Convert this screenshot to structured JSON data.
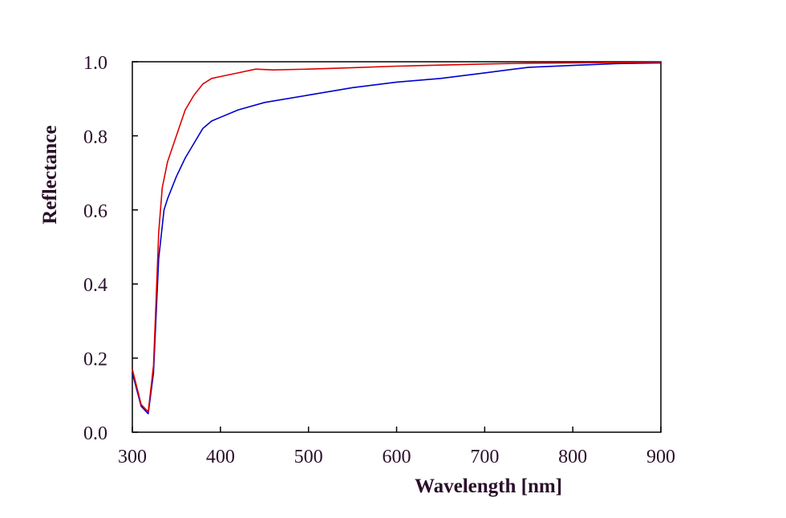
{
  "chart_data": {
    "type": "line",
    "xlabel": "Wavelength [nm]",
    "ylabel": "Reflectance",
    "xlim": [
      300,
      900
    ],
    "ylim": [
      0.0,
      1.0
    ],
    "x_ticks": [
      "300",
      "400",
      "500",
      "600",
      "700",
      "800",
      "900"
    ],
    "y_ticks": [
      "0.0",
      "0.2",
      "0.4",
      "0.6",
      "0.8",
      "1.0"
    ],
    "grid": false,
    "legend": "none",
    "series": [
      {
        "color": "#0000cc",
        "x": [
          300,
          310,
          318,
          324,
          330,
          336,
          340,
          350,
          360,
          370,
          380,
          390,
          400,
          420,
          450,
          500,
          550,
          600,
          650,
          700,
          750,
          800,
          850,
          900
        ],
        "y": [
          0.16,
          0.07,
          0.05,
          0.16,
          0.47,
          0.6,
          0.63,
          0.69,
          0.74,
          0.78,
          0.82,
          0.84,
          0.85,
          0.87,
          0.89,
          0.91,
          0.93,
          0.945,
          0.955,
          0.97,
          0.985,
          0.99,
          0.995,
          0.997
        ]
      },
      {
        "color": "#dd0000",
        "x": [
          300,
          310,
          318,
          324,
          330,
          334,
          340,
          350,
          360,
          370,
          380,
          390,
          400,
          420,
          440,
          460,
          500,
          550,
          600,
          650,
          700,
          750,
          800,
          850,
          900
        ],
        "y": [
          0.17,
          0.075,
          0.055,
          0.18,
          0.54,
          0.66,
          0.73,
          0.8,
          0.87,
          0.91,
          0.94,
          0.955,
          0.96,
          0.97,
          0.98,
          0.978,
          0.98,
          0.984,
          0.988,
          0.991,
          0.994,
          0.996,
          0.997,
          0.998,
          0.999
        ]
      }
    ]
  }
}
